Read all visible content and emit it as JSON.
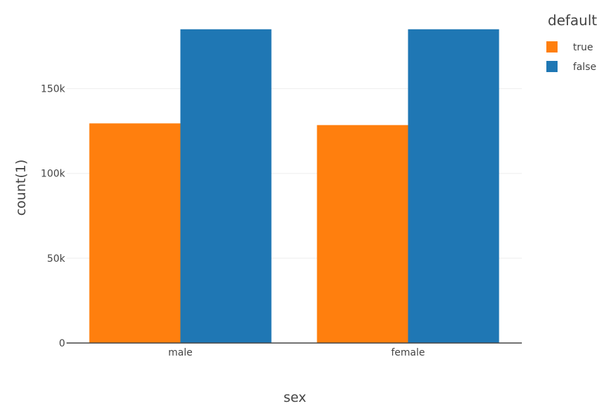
{
  "chart_data": {
    "type": "bar",
    "categories": [
      "male",
      "female"
    ],
    "series": [
      {
        "name": "true",
        "values": [
          129500,
          128500
        ],
        "color": "#ff7f0e"
      },
      {
        "name": "false",
        "values": [
          185000,
          185000
        ],
        "color": "#1f77b4"
      }
    ],
    "xlabel": "sex",
    "ylabel": "count(1)",
    "ylim": [
      0,
      194000
    ],
    "yticks": [
      0,
      50000,
      100000,
      150000
    ],
    "ytick_labels": [
      "0",
      "50k",
      "100k",
      "150k"
    ],
    "legend": {
      "title": "default",
      "position": "top-right"
    },
    "grid": "horizontal",
    "barmode": "grouped"
  }
}
